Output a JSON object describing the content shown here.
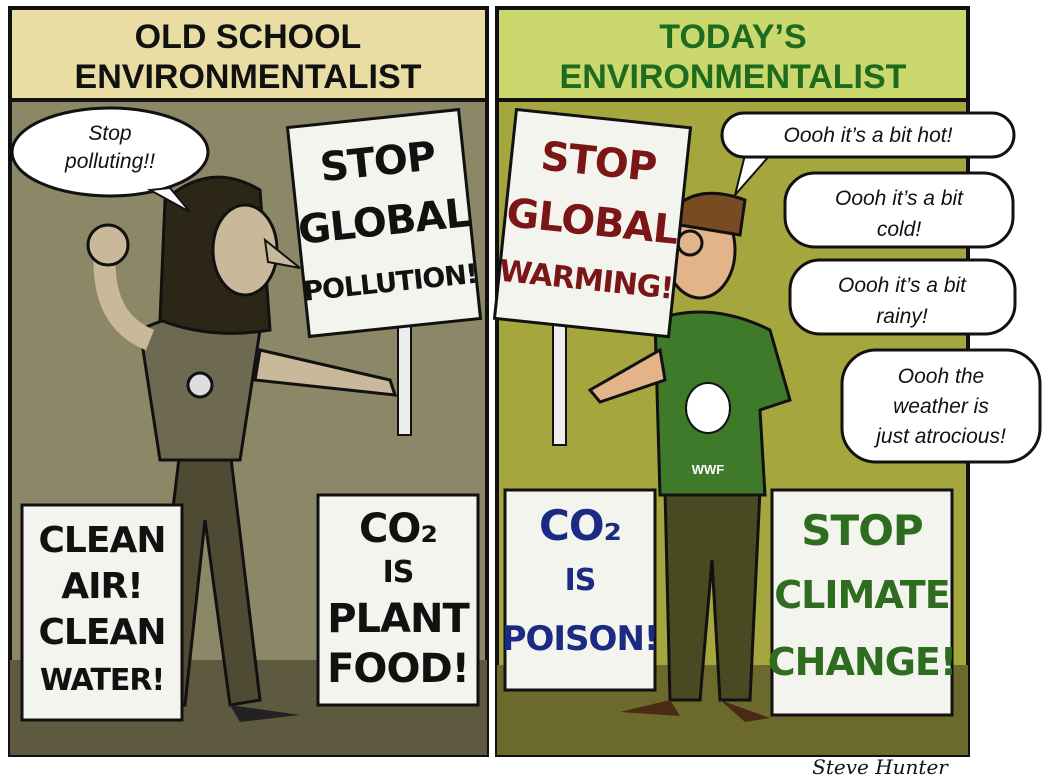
{
  "panels": [
    {
      "title": [
        "OLD SCHOOL",
        "ENVIRONMENTALIST"
      ],
      "speech": [
        [
          "Stop",
          "polluting!!"
        ]
      ],
      "signs": [
        {
          "lines": [
            "STOP",
            "GLOBAL",
            "POLLUTION!"
          ]
        },
        {
          "lines": [
            "CLEAN",
            "AIR!",
            "CLEAN",
            "WATER!"
          ]
        },
        {
          "lines": [
            "CO₂",
            "IS",
            "PLANT",
            "FOOD!"
          ]
        }
      ]
    },
    {
      "title": [
        "TODAY’S",
        "ENVIRONMENTALIST"
      ],
      "speech": [
        [
          "Oooh it’s a bit hot!"
        ],
        [
          "Oooh it’s a bit",
          "cold!"
        ],
        [
          "Oooh it’s a bit",
          "rainy!"
        ],
        [
          "Oooh the",
          "weather is",
          "just atrocious!"
        ]
      ],
      "shirt": "WWF",
      "signs": [
        {
          "lines": [
            "STOP",
            "GLOBAL",
            "WARMING!"
          ]
        },
        {
          "lines": [
            "CO₂",
            "IS",
            "POISON!"
          ]
        },
        {
          "lines": [
            "STOP",
            "CLIMATE",
            "CHANGE!"
          ]
        }
      ]
    }
  ],
  "signature": "Steve Hunter"
}
